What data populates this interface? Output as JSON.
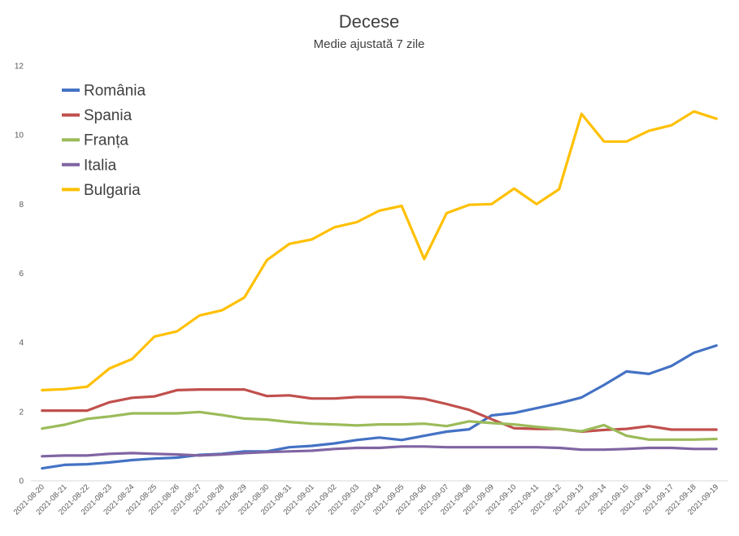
{
  "chart_data": {
    "type": "line",
    "title": "Decese",
    "subtitle": "Medie ajustată 7 zile",
    "ylim": [
      0,
      12
    ],
    "yticks": [
      0,
      2,
      4,
      6,
      8,
      10,
      12
    ],
    "grid": false,
    "legend_position": "top-left",
    "categories": [
      "2021-08-20",
      "2021-08-21",
      "2021-08-22",
      "2021-08-23",
      "2021-08-24",
      "2021-08-25",
      "2021-08-26",
      "2021-08-27",
      "2021-08-28",
      "2021-08-29",
      "2021-08-30",
      "2021-08-31",
      "2021-09-01",
      "2021-09-02",
      "2021-09-03",
      "2021-09-04",
      "2021-09-05",
      "2021-09-06",
      "2021-09-07",
      "2021-09-08",
      "2021-09-09",
      "2021-09-10",
      "2021-09-11",
      "2021-09-12",
      "2021-09-13",
      "2021-09-14",
      "2021-09-15",
      "2021-09-16",
      "2021-09-17",
      "2021-09-18",
      "2021-09-19"
    ],
    "series": [
      {
        "name": "România",
        "color": "#4472c4",
        "values": [
          0.36,
          0.46,
          0.48,
          0.53,
          0.6,
          0.64,
          0.67,
          0.75,
          0.78,
          0.85,
          0.85,
          0.97,
          1.01,
          1.08,
          1.18,
          1.25,
          1.18,
          1.3,
          1.42,
          1.49,
          1.89,
          1.96,
          2.1,
          2.24,
          2.41,
          2.77,
          3.16,
          3.09,
          3.32,
          3.7,
          3.91
        ]
      },
      {
        "name": "Spania",
        "color": "#c0504d",
        "values": [
          2.03,
          2.03,
          2.03,
          2.27,
          2.4,
          2.44,
          2.62,
          2.64,
          2.64,
          2.64,
          2.45,
          2.47,
          2.38,
          2.38,
          2.42,
          2.42,
          2.42,
          2.37,
          2.22,
          2.05,
          1.78,
          1.52,
          1.5,
          1.5,
          1.42,
          1.47,
          1.5,
          1.58,
          1.48,
          1.48,
          1.48
        ]
      },
      {
        "name": "Franța",
        "color": "#9bbb59",
        "values": [
          1.51,
          1.62,
          1.79,
          1.86,
          1.95,
          1.95,
          1.95,
          1.99,
          1.9,
          1.8,
          1.77,
          1.7,
          1.65,
          1.63,
          1.6,
          1.63,
          1.63,
          1.65,
          1.58,
          1.72,
          1.67,
          1.63,
          1.56,
          1.5,
          1.43,
          1.61,
          1.3,
          1.19,
          1.19,
          1.19,
          1.21
        ]
      },
      {
        "name": "Italia",
        "color": "#8064a2",
        "values": [
          0.71,
          0.73,
          0.73,
          0.78,
          0.8,
          0.78,
          0.76,
          0.73,
          0.76,
          0.8,
          0.83,
          0.85,
          0.87,
          0.92,
          0.95,
          0.95,
          0.99,
          0.99,
          0.97,
          0.97,
          0.97,
          0.97,
          0.97,
          0.95,
          0.9,
          0.9,
          0.92,
          0.95,
          0.95,
          0.92,
          0.92
        ]
      },
      {
        "name": "Bulgaria",
        "color": "#ffc000",
        "values": [
          2.62,
          2.65,
          2.72,
          3.25,
          3.52,
          4.17,
          4.32,
          4.78,
          4.93,
          5.3,
          6.38,
          6.85,
          6.98,
          7.33,
          7.48,
          7.81,
          7.95,
          6.41,
          7.74,
          7.98,
          8.0,
          8.45,
          8.0,
          8.43,
          10.61,
          9.81,
          9.81,
          10.12,
          10.28,
          10.68,
          10.47
        ]
      }
    ]
  }
}
